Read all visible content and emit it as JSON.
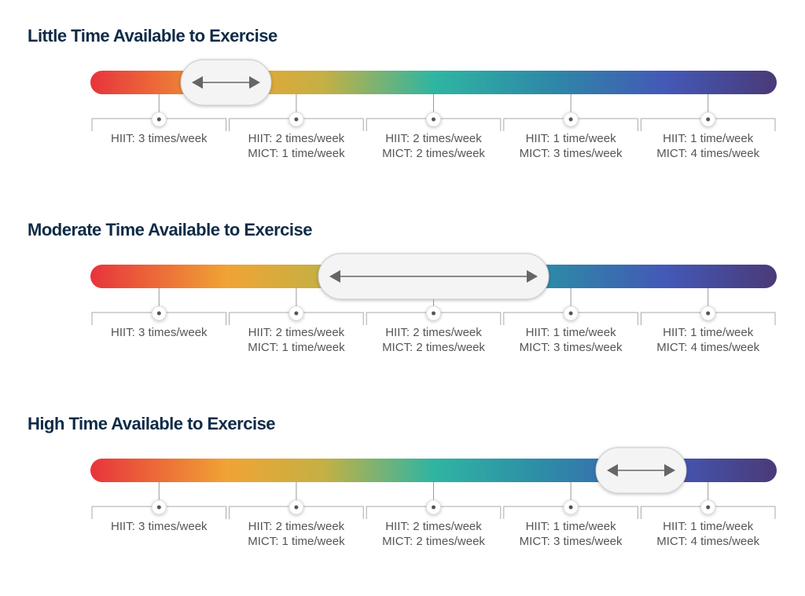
{
  "sections": [
    {
      "title": "Little Time Available to Exercise",
      "options": [
        {
          "lines": [
            "HIIT: 3 times/week"
          ]
        },
        {
          "lines": [
            "HIIT: 2 times/week",
            "MICT: 1 time/week"
          ]
        },
        {
          "lines": [
            "HIIT: 2 times/week",
            "MICT: 2 times/week"
          ]
        },
        {
          "lines": [
            "HIIT: 1 time/week",
            "MICT: 3 times/week"
          ]
        },
        {
          "lines": [
            "HIIT: 1 time/week",
            "MICT: 4 times/week"
          ]
        }
      ]
    },
    {
      "title": "Moderate Time Available to Exercise",
      "options": [
        {
          "lines": [
            "HIIT: 3 times/week"
          ]
        },
        {
          "lines": [
            "HIIT: 2 times/week",
            "MICT: 1 time/week"
          ]
        },
        {
          "lines": [
            "HIIT: 2 times/week",
            "MICT: 2 times/week"
          ]
        },
        {
          "lines": [
            "HIIT: 1 time/week",
            "MICT: 3 times/week"
          ]
        },
        {
          "lines": [
            "HIIT: 1 time/week",
            "MICT: 4 times/week"
          ]
        }
      ]
    },
    {
      "title": "High Time Available to Exercise",
      "options": [
        {
          "lines": [
            "HIIT: 3 times/week"
          ]
        },
        {
          "lines": [
            "HIIT: 2 times/week",
            "MICT: 1 time/week"
          ]
        },
        {
          "lines": [
            "HIIT: 2 times/week",
            "MICT: 2 times/week"
          ]
        },
        {
          "lines": [
            "HIIT: 1 time/week",
            "MICT: 3 times/week"
          ]
        },
        {
          "lines": [
            "HIIT: 1 time/week",
            "MICT: 4 times/week"
          ]
        }
      ]
    }
  ]
}
